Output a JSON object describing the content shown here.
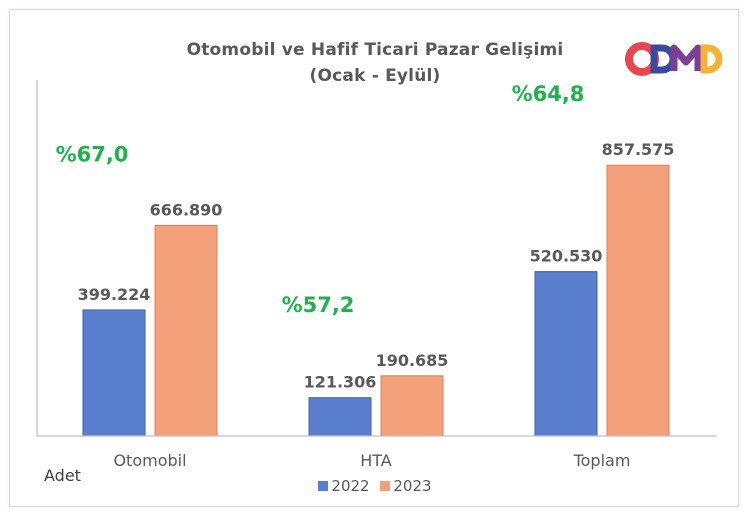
{
  "chart_data": {
    "type": "bar",
    "title": "Otomobil ve Hafif Ticari Pazar Gelişimi",
    "subtitle": "(Ocak - Eylül)",
    "categories": [
      "Otomobil",
      "HTA",
      "Toplam"
    ],
    "series": [
      {
        "name": "2022",
        "values": [
          399224,
          121306,
          520530
        ],
        "labels": [
          "399.224",
          "121.306",
          "520.530"
        ],
        "color": "#5b7fcf"
      },
      {
        "name": "2023",
        "values": [
          666890,
          190685,
          857575
        ],
        "labels": [
          "666.890",
          "190.685",
          "857.575"
        ],
        "color": "#f4a07b"
      }
    ],
    "growth_labels": [
      "%67,0",
      "%57,2",
      "%64,8"
    ],
    "growth_color": "#22b14c",
    "ylim": [
      0,
      950000
    ],
    "unit_label": "Adet",
    "legend_position": "bottom",
    "grid": false
  },
  "logo": {
    "text": "ODMD",
    "colors": [
      "#e8474f",
      "#3a4a9c",
      "#f5b335",
      "#7b3f98"
    ]
  }
}
